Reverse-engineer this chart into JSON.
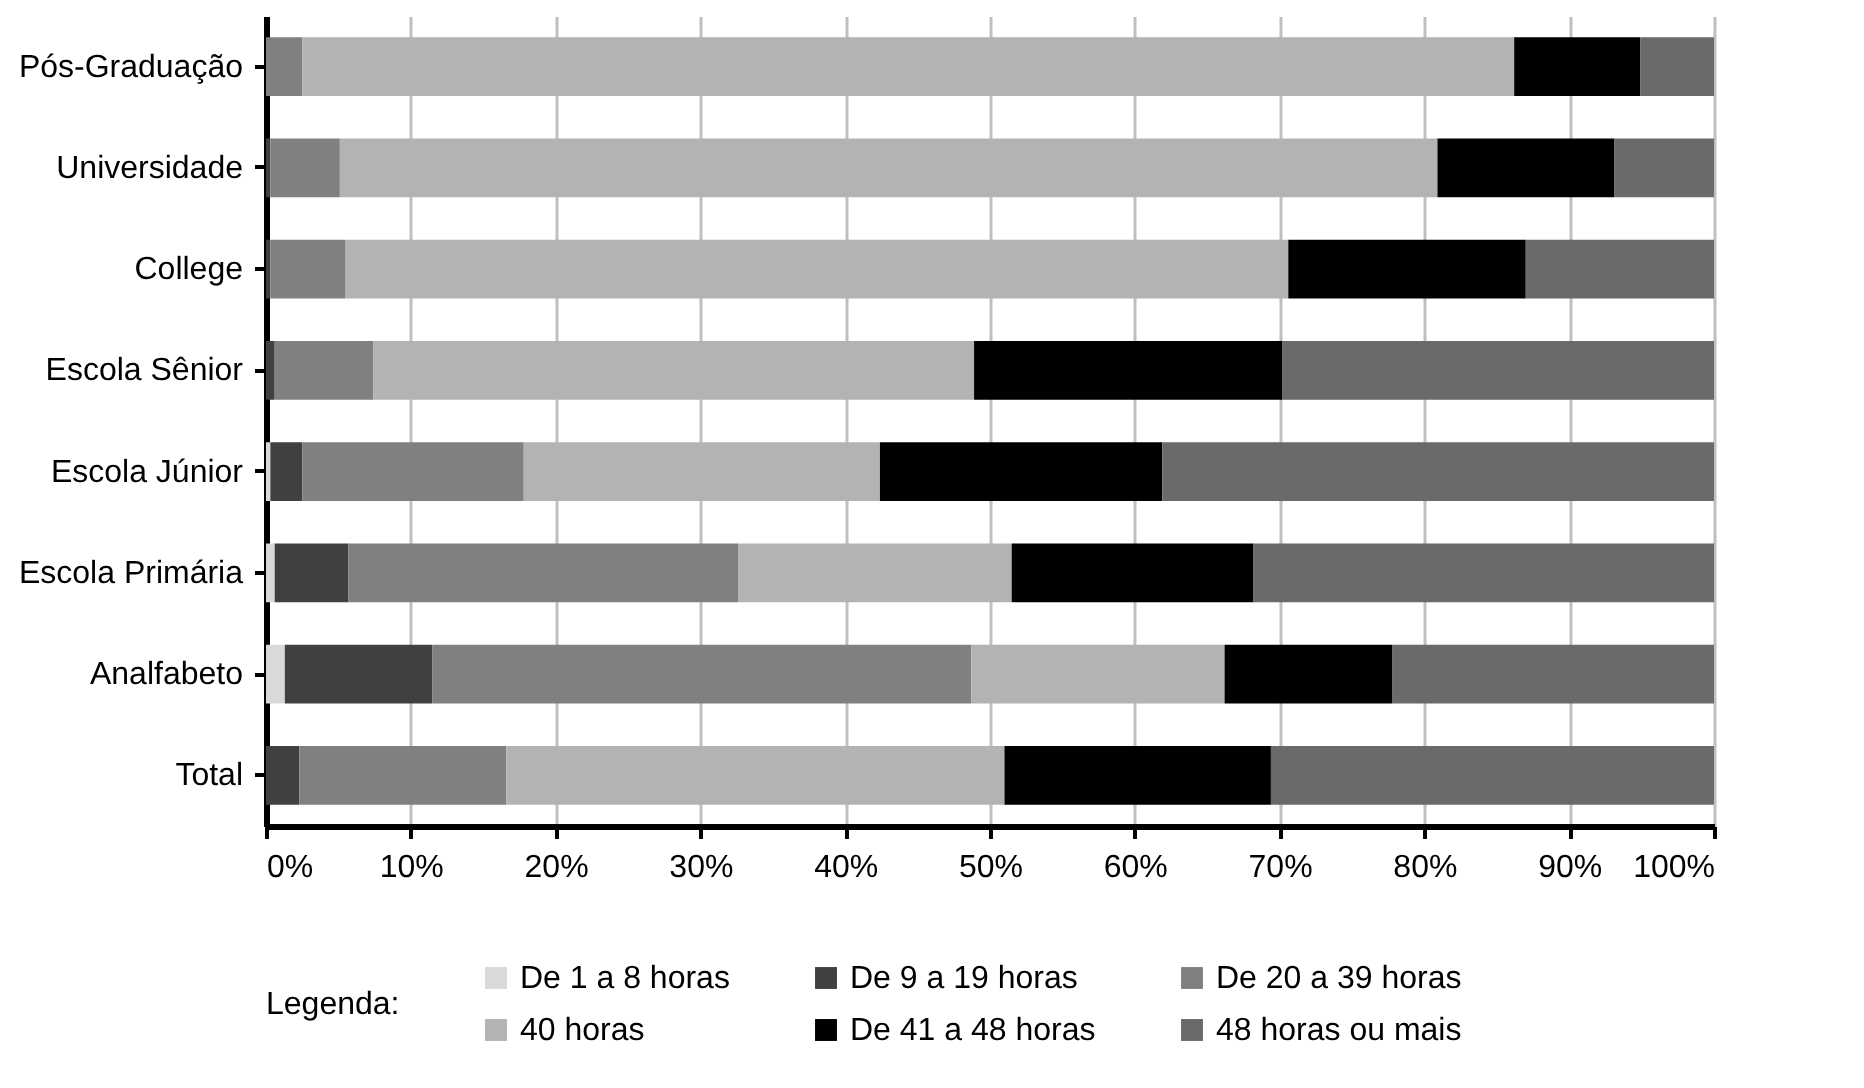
{
  "chart_data": {
    "type": "bar",
    "orientation": "horizontal",
    "stacked": true,
    "categories": [
      "Pós-Graduação",
      "Universidade",
      "College",
      "Escola Sênior",
      "Escola Júnior",
      "Escola Primária",
      "Analfabeto",
      "Total"
    ],
    "series": [
      {
        "name": "De 1 a 8 horas",
        "color": "#d9d9d9",
        "values": [
          0,
          0,
          0,
          0,
          0.3,
          0.6,
          1.3,
          null
        ]
      },
      {
        "name": "De 9 a 19 horas",
        "color": "#404040",
        "values": [
          0,
          0.3,
          0.3,
          0.6,
          2.2,
          5.1,
          10.2,
          2.3
        ]
      },
      {
        "name": "De 20 a 39 horas",
        "color": "#808080",
        "values": [
          2.5,
          4.8,
          5.2,
          6.8,
          15.3,
          26.9,
          37.2,
          14.3
        ]
      },
      {
        "name": "40  horas",
        "color": "#b3b3b3",
        "values": [
          83.7,
          75.8,
          65.1,
          41.5,
          24.6,
          18.9,
          17.5,
          34.4
        ]
      },
      {
        "name": "De 41 a 48 horas",
        "color": "#000000",
        "values": [
          8.7,
          12.2,
          16.4,
          21.3,
          19.5,
          16.7,
          11.6,
          18.4
        ]
      },
      {
        "name": "48  horas ou mais",
        "color": "#6a6a6a",
        "values": [
          5.1,
          6.9,
          13.0,
          29.8,
          38.1,
          31.8,
          22.2,
          30.6
        ]
      }
    ],
    "xlim": [
      0,
      100
    ],
    "xticks": [
      {
        "value": 0,
        "label": "0%"
      },
      {
        "value": 10,
        "label": "10%"
      },
      {
        "value": 20,
        "label": "20%"
      },
      {
        "value": 30,
        "label": "30%"
      },
      {
        "value": 40,
        "label": "40%"
      },
      {
        "value": 50,
        "label": "50%"
      },
      {
        "value": 60,
        "label": "60%"
      },
      {
        "value": 70,
        "label": "70%"
      },
      {
        "value": 80,
        "label": "80%"
      },
      {
        "value": 90,
        "label": "90%"
      },
      {
        "value": 100,
        "label": "100%"
      }
    ],
    "grid": "x",
    "legend": "bottom",
    "legend_title": "Legenda:"
  }
}
